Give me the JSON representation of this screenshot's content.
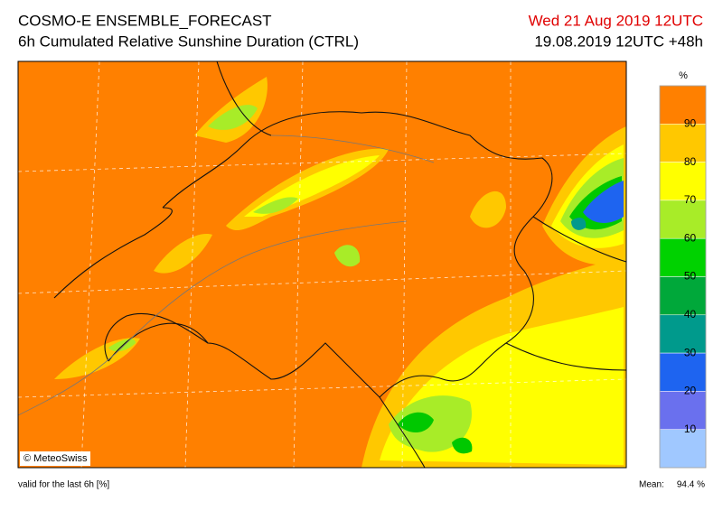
{
  "header": {
    "title": "COSMO-E ENSEMBLE_FORECAST",
    "subtitle": "6h Cumulated Relative Sunshine Duration (CTRL)",
    "valid_time": "Wed 21 Aug 2019 12UTC",
    "run": "19.08.2019 12UTC +48h"
  },
  "colorbar": {
    "unit": "%",
    "ticks": [
      90,
      80,
      70,
      60,
      50,
      40,
      30,
      20,
      10
    ],
    "colors": [
      "#ff8000",
      "#ffc800",
      "#ffff00",
      "#a8ec28",
      "#00d200",
      "#00a83a",
      "#009a8c",
      "#1e64f0",
      "#6a70ee",
      "#a0c8ff"
    ]
  },
  "map": {
    "credit": "© MeteoSwiss"
  },
  "footer": {
    "note": "valid for the last 6h [%]",
    "mean_label": "Mean:",
    "mean": "94.4 %"
  }
}
